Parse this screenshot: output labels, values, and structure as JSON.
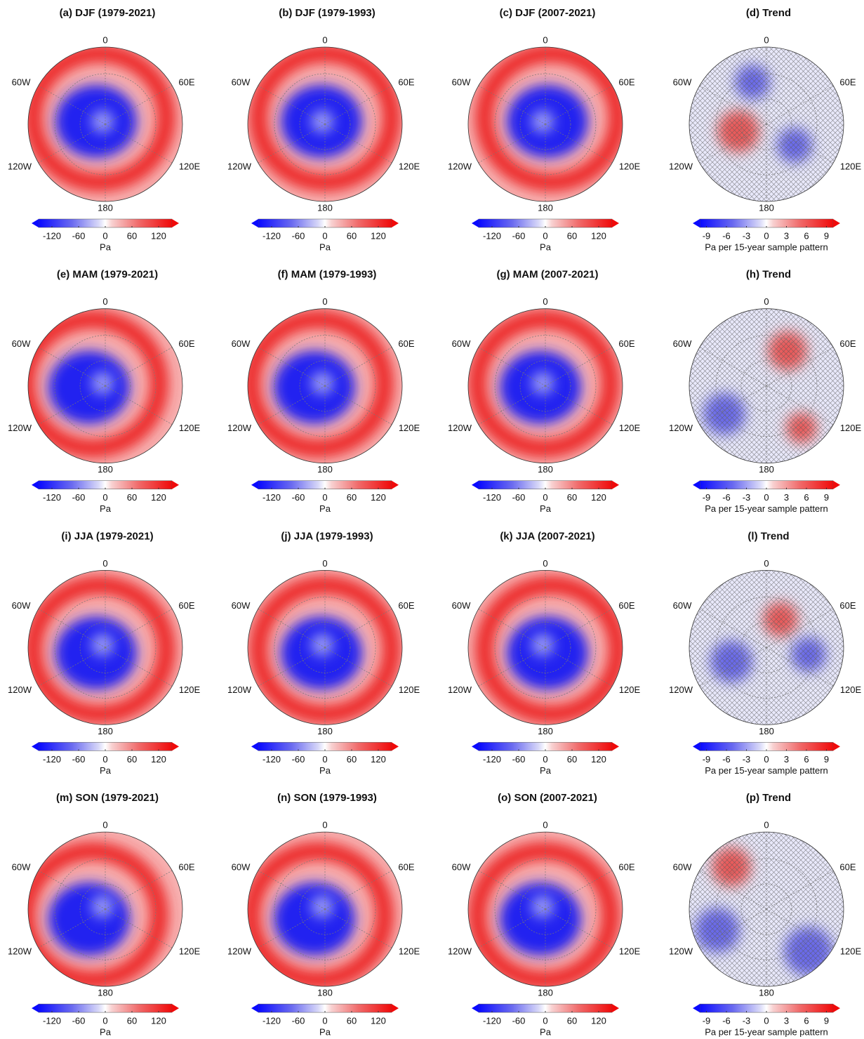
{
  "panels": [
    {
      "title": "(a) DJF (1979-2021)",
      "lon": [
        "0",
        "60E",
        "120E",
        "180",
        "120W",
        "60W"
      ],
      "colorbar": {
        "ticks": [
          -120,
          -60,
          0,
          60,
          120
        ],
        "lim": [
          -150,
          150
        ],
        "label": "Pa"
      }
    },
    {
      "title": "(b) DJF (1979-1993)",
      "lon": [
        "0",
        "60E",
        "120E",
        "180",
        "120W",
        "60W"
      ],
      "colorbar": {
        "ticks": [
          -120,
          -60,
          0,
          60,
          120
        ],
        "lim": [
          -150,
          150
        ],
        "label": "Pa"
      }
    },
    {
      "title": "(c) DJF (2007-2021)",
      "lon": [
        "0",
        "60E",
        "120E",
        "180",
        "120W",
        "60W"
      ],
      "colorbar": {
        "ticks": [
          -120,
          -60,
          0,
          60,
          120
        ],
        "lim": [
          -150,
          150
        ],
        "label": "Pa"
      }
    },
    {
      "title": "(d) Trend",
      "lon": [
        "0",
        "60E",
        "120E",
        "180",
        "120W",
        "60W"
      ],
      "colorbar": {
        "ticks": [
          -9,
          -6,
          -3,
          0,
          3,
          6,
          9
        ],
        "lim": [
          -10,
          10
        ],
        "label": "Pa per 15-year sample pattern"
      }
    },
    {
      "title": "(e) MAM (1979-2021)",
      "lon": [
        "0",
        "60E",
        "120E",
        "180",
        "120W",
        "60W"
      ],
      "colorbar": {
        "ticks": [
          -120,
          -60,
          0,
          60,
          120
        ],
        "lim": [
          -150,
          150
        ],
        "label": "Pa"
      }
    },
    {
      "title": "(f) MAM (1979-1993)",
      "lon": [
        "0",
        "60E",
        "120E",
        "180",
        "120W",
        "60W"
      ],
      "colorbar": {
        "ticks": [
          -120,
          -60,
          0,
          60,
          120
        ],
        "lim": [
          -150,
          150
        ],
        "label": "Pa"
      }
    },
    {
      "title": "(g) MAM (2007-2021)",
      "lon": [
        "0",
        "60E",
        "120E",
        "180",
        "120W",
        "60W"
      ],
      "colorbar": {
        "ticks": [
          -120,
          -60,
          0,
          60,
          120
        ],
        "lim": [
          -150,
          150
        ],
        "label": "Pa"
      }
    },
    {
      "title": "(h) Trend",
      "lon": [
        "0",
        "60E",
        "120E",
        "180",
        "120W",
        "60W"
      ],
      "colorbar": {
        "ticks": [
          -9,
          -6,
          -3,
          0,
          3,
          6,
          9
        ],
        "lim": [
          -10,
          10
        ],
        "label": "Pa per 15-year sample pattern"
      }
    },
    {
      "title": "(i) JJA (1979-2021)",
      "lon": [
        "0",
        "60E",
        "120E",
        "180",
        "120W",
        "60W"
      ],
      "colorbar": {
        "ticks": [
          -120,
          -60,
          0,
          60,
          120
        ],
        "lim": [
          -150,
          150
        ],
        "label": "Pa"
      }
    },
    {
      "title": "(j) JJA (1979-1993)",
      "lon": [
        "0",
        "60E",
        "120E",
        "180",
        "120W",
        "60W"
      ],
      "colorbar": {
        "ticks": [
          -120,
          -60,
          0,
          60,
          120
        ],
        "lim": [
          -150,
          150
        ],
        "label": "Pa"
      }
    },
    {
      "title": "(k) JJA (2007-2021)",
      "lon": [
        "0",
        "60E",
        "120E",
        "180",
        "120W",
        "60W"
      ],
      "colorbar": {
        "ticks": [
          -120,
          -60,
          0,
          60,
          120
        ],
        "lim": [
          -150,
          150
        ],
        "label": "Pa"
      }
    },
    {
      "title": "(l) Trend",
      "lon": [
        "0",
        "60E",
        "120E",
        "180",
        "120W",
        "60W"
      ],
      "colorbar": {
        "ticks": [
          -9,
          -6,
          -3,
          0,
          3,
          6,
          9
        ],
        "lim": [
          -10,
          10
        ],
        "label": "Pa per 15-year sample pattern"
      }
    },
    {
      "title": "(m) SON (1979-2021)",
      "lon": [
        "0",
        "60E",
        "120E",
        "180",
        "120W",
        "60W"
      ],
      "colorbar": {
        "ticks": [
          -120,
          -60,
          0,
          60,
          120
        ],
        "lim": [
          -150,
          150
        ],
        "label": "Pa"
      }
    },
    {
      "title": "(n) SON (1979-1993)",
      "lon": [
        "0",
        "60E",
        "120E",
        "180",
        "120W",
        "60W"
      ],
      "colorbar": {
        "ticks": [
          -120,
          -60,
          0,
          60,
          120
        ],
        "lim": [
          -150,
          150
        ],
        "label": "Pa"
      }
    },
    {
      "title": "(o) SON (2007-2021)",
      "lon": [
        "0",
        "60E",
        "120E",
        "180",
        "120W",
        "60W"
      ],
      "colorbar": {
        "ticks": [
          -120,
          -60,
          0,
          60,
          120
        ],
        "lim": [
          -150,
          150
        ],
        "label": "Pa"
      }
    },
    {
      "title": "(p) Trend",
      "lon": [
        "0",
        "60E",
        "120E",
        "180",
        "120W",
        "60W"
      ],
      "colorbar": {
        "ticks": [
          -9,
          -6,
          -3,
          0,
          3,
          6,
          9
        ],
        "lim": [
          -10,
          10
        ],
        "label": "Pa per 15-year sample pattern"
      }
    }
  ]
}
